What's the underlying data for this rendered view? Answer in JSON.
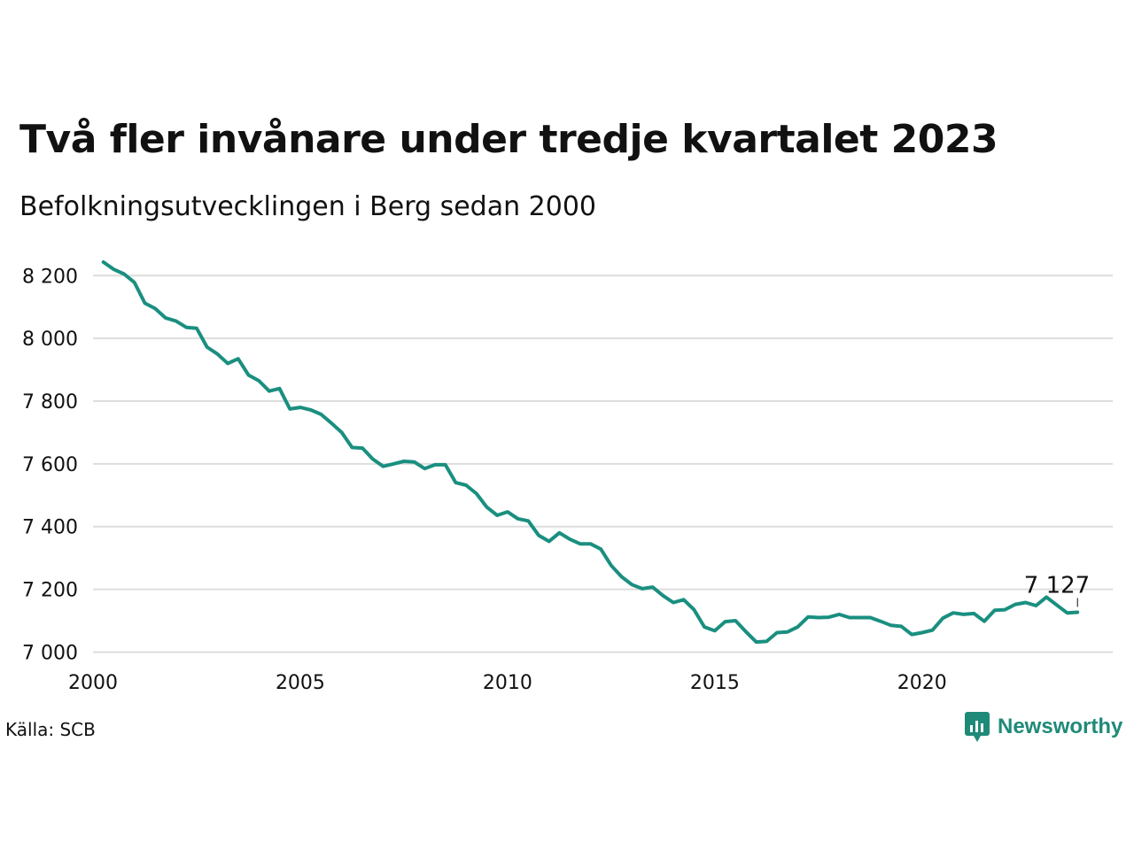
{
  "header": {
    "title": "Två fler invånare under tredje kvartalet 2023",
    "subtitle": "Befolkningsutvecklingen i Berg sedan 2000"
  },
  "footer": {
    "source": "Källa: SCB",
    "brand": "Newsworthy",
    "brand_icon": "newsworthy-logo-icon",
    "brand_color": "#1f8a78"
  },
  "chart_data": {
    "type": "line",
    "title": "Två fler invånare under tredje kvartalet 2023",
    "subtitle": "Befolkningsutvecklingen i Berg sedan 2000",
    "xlabel": "",
    "ylabel": "",
    "xlim": [
      2000,
      2024.6
    ],
    "ylim": [
      6990,
      8260
    ],
    "x_ticks": [
      2000,
      2005,
      2010,
      2015,
      2020
    ],
    "y_ticks": [
      {
        "value": 7000,
        "label": "7 000"
      },
      {
        "value": 7200,
        "label": "7 200"
      },
      {
        "value": 7400,
        "label": "7 400"
      },
      {
        "value": 7600,
        "label": "7 600"
      },
      {
        "value": 7800,
        "label": "7 800"
      },
      {
        "value": 8000,
        "label": "8 000"
      },
      {
        "value": 8200,
        "label": "8 200"
      }
    ],
    "grid": "horizontal",
    "line_color": "#1a8f80",
    "end_label": "7 127",
    "series": [
      {
        "x": [
          2000.25,
          2000.5,
          2000.75,
          2001.0,
          2001.25,
          2001.5,
          2001.75,
          2002.0,
          2002.25,
          2002.5,
          2002.75,
          2003.0,
          2003.25,
          2003.5,
          2003.75,
          2004.0,
          2004.25,
          2004.5,
          2004.75,
          2005.0,
          2005.25,
          2005.5,
          2005.75,
          2006.0,
          2006.25,
          2006.5,
          2006.75,
          2007.0,
          2007.25,
          2007.5,
          2007.75,
          2008.0,
          2008.25,
          2008.5,
          2008.75,
          2009.0,
          2009.25,
          2009.5,
          2009.75,
          2010.0,
          2010.25,
          2010.5,
          2010.75,
          2011.0,
          2011.25,
          2011.5,
          2011.75,
          2012.0,
          2012.25,
          2012.5,
          2012.75,
          2013.0,
          2013.25,
          2013.5,
          2013.75,
          2014.0,
          2014.25,
          2014.5,
          2014.75,
          2015.0,
          2015.25,
          2015.5,
          2015.75,
          2016.0,
          2016.25,
          2016.5,
          2016.75,
          2017.0,
          2017.25,
          2017.5,
          2017.75,
          2018.0,
          2018.25,
          2018.5,
          2018.75,
          2019.0,
          2019.25,
          2019.5,
          2019.75,
          2020.0,
          2020.25,
          2020.5,
          2020.75,
          2021.0,
          2021.25,
          2021.5,
          2021.75,
          2022.0,
          2022.25,
          2022.5,
          2022.75,
          2023.0,
          2023.25,
          2023.5,
          2023.75
        ],
        "values": [
          8243,
          8220,
          8205,
          8178,
          8112,
          8095,
          8065,
          8055,
          8035,
          8032,
          7972,
          7950,
          7920,
          7935,
          7883,
          7865,
          7832,
          7840,
          7775,
          7780,
          7772,
          7758,
          7730,
          7700,
          7652,
          7650,
          7615,
          7592,
          7600,
          7608,
          7606,
          7585,
          7597,
          7597,
          7540,
          7532,
          7505,
          7462,
          7436,
          7447,
          7425,
          7418,
          7372,
          7353,
          7380,
          7360,
          7345,
          7345,
          7328,
          7276,
          7240,
          7215,
          7202,
          7207,
          7180,
          7158,
          7167,
          7135,
          7080,
          7068,
          7097,
          7100,
          7065,
          7032,
          7034,
          7062,
          7064,
          7080,
          7112,
          7110,
          7111,
          7120,
          7110,
          7110,
          7110,
          7098,
          7085,
          7082,
          7056,
          7062,
          7070,
          7108,
          7125,
          7120,
          7123,
          7098,
          7133,
          7135,
          7152,
          7158,
          7148,
          7175,
          7150,
          7125,
          7127
        ]
      }
    ]
  }
}
